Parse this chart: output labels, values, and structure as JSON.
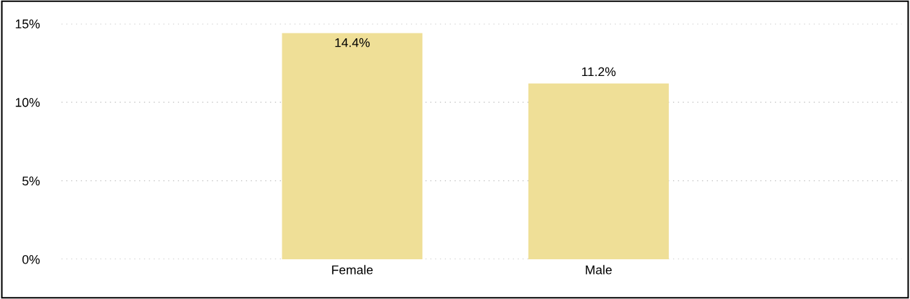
{
  "chart_data": {
    "type": "bar",
    "categories": [
      "Female",
      "Male"
    ],
    "values": [
      14.4,
      11.2
    ],
    "color": "#efdf97",
    "ylim": [
      0,
      15
    ],
    "yticks": [
      {
        "value": 0,
        "label": "0%"
      },
      {
        "value": 5,
        "label": "5%"
      },
      {
        "value": 10,
        "label": "10%"
      },
      {
        "value": 15,
        "label": "15%"
      }
    ],
    "value_labels": [
      "14.4%",
      "11.2%"
    ],
    "grid": "y"
  }
}
